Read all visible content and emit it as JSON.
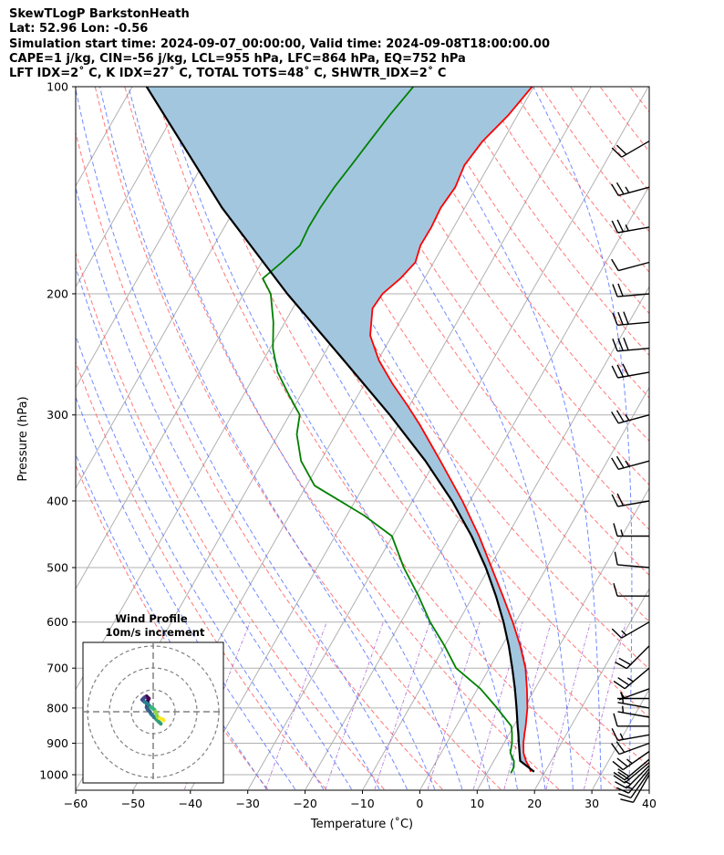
{
  "header": {
    "line1": "SkewTLogP BarkstonHeath",
    "line2": "Lat: 52.96   Lon: -0.56",
    "line3": "Simulation start time: 2024-09-07_00:00:00, Valid time: 2024-09-08T18:00:00.00",
    "line4": "CAPE=1 j/kg, CIN=-56 j/kg, LCL=955 hPa, LFC=864 hPa, EQ=752 hPa",
    "line5": "LFT IDX=2˚ C, K IDX=27˚ C, TOTAL TOTS=48˚ C, SHWTR_IDX=2˚ C"
  },
  "chart_data": {
    "type": "skewt",
    "xlabel": "Temperature (˚C)",
    "ylabel": "Pressure (hPa)",
    "xlim": [
      -60,
      40
    ],
    "ylim": [
      1050,
      100
    ],
    "x_ticks": [
      -60,
      -50,
      -40,
      -30,
      -20,
      -10,
      0,
      10,
      20,
      30,
      40
    ],
    "x_tick_labels": [
      "−60",
      "−50",
      "−40",
      "−30",
      "−20",
      "−10",
      "0",
      "10",
      "20",
      "30",
      "40"
    ],
    "y_ticks": [
      1000,
      900,
      800,
      700,
      600,
      500,
      400,
      300,
      200,
      100
    ],
    "y_tick_labels": [
      "1000",
      "900",
      "800",
      "700",
      "600",
      "500",
      "400",
      "300",
      "200",
      "100"
    ],
    "temperature": {
      "name": "Temperature",
      "color": "#ff0000",
      "p": [
        990,
        975,
        955,
        930,
        900,
        870,
        850,
        800,
        750,
        700,
        650,
        600,
        550,
        500,
        450,
        400,
        350,
        310,
        290,
        270,
        250,
        230,
        210,
        200,
        190,
        180,
        170,
        160,
        150,
        140,
        130,
        120,
        110,
        100
      ],
      "t": [
        17.5,
        16.8,
        15.6,
        14.4,
        13.4,
        12.6,
        12.1,
        10.6,
        8.6,
        6.3,
        3.2,
        -0.5,
        -4.8,
        -9.6,
        -14.9,
        -21.3,
        -29.1,
        -36.3,
        -40.5,
        -45.2,
        -49.8,
        -53.8,
        -56.1,
        -55.8,
        -54.2,
        -53.2,
        -54.0,
        -53.9,
        -54.2,
        -53.7,
        -54.3,
        -53.5,
        -51.6,
        -50.3
      ]
    },
    "dewpoint": {
      "name": "Dewpoint",
      "color": "#008000",
      "p": [
        995,
        975,
        955,
        930,
        900,
        870,
        850,
        800,
        750,
        700,
        650,
        600,
        550,
        500,
        450,
        420,
        380,
        350,
        320,
        300,
        280,
        260,
        240,
        220,
        200,
        190,
        180,
        170,
        160,
        150,
        140,
        130,
        120,
        110,
        100
      ],
      "t": [
        14.2,
        14.1,
        13.5,
        12.1,
        11.4,
        10.4,
        9.6,
        5.3,
        0.5,
        -5.8,
        -10.0,
        -14.9,
        -19.5,
        -24.9,
        -30.1,
        -37.0,
        -48.6,
        -53.4,
        -56.8,
        -58.2,
        -62.2,
        -66.3,
        -69.5,
        -72.0,
        -75.3,
        -78.2,
        -76.5,
        -75.0,
        -75.3,
        -75.2,
        -74.8,
        -74.0,
        -73.2,
        -72.3,
        -71.0
      ]
    },
    "parcel": {
      "name": "Parcel",
      "color": "#000000",
      "p": [
        990,
        955,
        930,
        900,
        870,
        850,
        800,
        750,
        700,
        650,
        600,
        550,
        500,
        450,
        400,
        350,
        300,
        250,
        200,
        150,
        100
      ],
      "t": [
        18.1,
        14.6,
        13.7,
        12.6,
        11.5,
        10.7,
        8.7,
        6.5,
        4.0,
        1.2,
        -2.1,
        -6.0,
        -10.6,
        -16.2,
        -23.1,
        -31.7,
        -42.5,
        -55.9,
        -72.4,
        -92.3,
        -117.5
      ]
    },
    "cape_shading": {
      "color": "#a3c6df",
      "label": "CAPE"
    },
    "background_lines": {
      "isotherm_color": "#b0b0b0",
      "dry_adiabat_color": "#ff6060",
      "moist_adiabat_color": "#4f6dff",
      "mixing_ratio_color": "#9a4dcb"
    },
    "wind_barbs": {
      "color": "#000000",
      "p": [
        1000,
        990,
        980,
        970,
        960,
        950,
        925,
        900,
        875,
        850,
        825,
        800,
        775,
        750,
        700,
        650,
        600,
        550,
        500,
        450,
        400,
        350,
        300,
        260,
        240,
        220,
        200,
        180,
        160,
        140,
        120
      ],
      "speed": [
        10,
        12,
        15,
        18,
        20,
        22,
        25,
        20,
        15,
        10,
        8,
        6,
        5,
        8,
        25,
        20,
        15,
        10,
        10,
        15,
        20,
        25,
        25,
        30,
        30,
        30,
        20,
        10,
        25,
        25,
        20
      ],
      "dir": [
        210,
        215,
        220,
        225,
        230,
        230,
        235,
        250,
        260,
        270,
        280,
        280,
        270,
        250,
        230,
        225,
        240,
        270,
        275,
        270,
        260,
        255,
        255,
        260,
        265,
        265,
        265,
        255,
        260,
        255,
        240
      ]
    },
    "hodograph": {
      "title": "Wind Profile",
      "subtitle": "10m/s increment",
      "ring_increment_ms": 10,
      "u": [
        3.5,
        2.5,
        1.5,
        0.5,
        -1.0,
        -1.5,
        -2.5,
        -3.0,
        -2.8,
        -2.5,
        -2.5,
        -2.0,
        -3.0,
        -4.0,
        -5.0,
        -4.0,
        -3.0,
        -2.0,
        -1.0,
        0.5,
        1.0,
        1.5,
        2.0,
        3.0,
        4.5,
        4.8
      ],
      "v": [
        -5.5,
        -4.5,
        -3.5,
        -2.5,
        -1.0,
        0.0,
        1.0,
        2.0,
        3.0,
        4.0,
        5.0,
        6.0,
        7.0,
        6.5,
        5.5,
        4.5,
        4.0,
        3.0,
        2.0,
        1.0,
        0.0,
        -1.0,
        -2.5,
        -3.0,
        -3.5,
        -4.0
      ],
      "colormap": [
        "#2f9e7a",
        "#2c7c8e",
        "#35608d",
        "#43317d",
        "#440154",
        "#3e4a89",
        "#26828e",
        "#35b779",
        "#90d743",
        "#fde725"
      ]
    }
  }
}
